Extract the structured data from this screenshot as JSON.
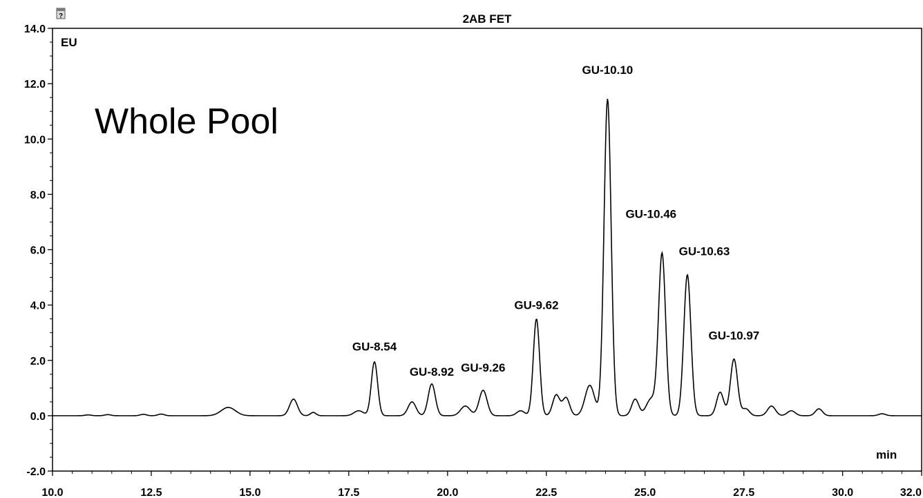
{
  "chart_data": {
    "type": "line",
    "title": "2AB FET",
    "annotation": "Whole Pool",
    "ylabel": "EU",
    "xlabel": "min",
    "xlim": [
      10.0,
      32.0
    ],
    "ylim": [
      -2.0,
      14.0
    ],
    "grid": false,
    "x_ticks": [
      "10.0",
      "12.5",
      "15.0",
      "17.5",
      "20.0",
      "22.5",
      "25.0",
      "27.5",
      "30.0",
      "32.0"
    ],
    "y_ticks": [
      "14.0",
      "12.0",
      "10.0",
      "8.0",
      "6.0",
      "4.0",
      "2.0",
      "0.0",
      "-2.0"
    ],
    "baseline": 0.0,
    "peaks": [
      {
        "x": 10.9,
        "y": 0.03,
        "w": 0.08
      },
      {
        "x": 11.4,
        "y": 0.04,
        "w": 0.08
      },
      {
        "x": 12.3,
        "y": 0.05,
        "w": 0.08
      },
      {
        "x": 12.75,
        "y": 0.06,
        "w": 0.08
      },
      {
        "x": 14.45,
        "y": 0.3,
        "w": 0.18
      },
      {
        "x": 16.1,
        "y": 0.6,
        "w": 0.1
      },
      {
        "x": 16.6,
        "y": 0.12,
        "w": 0.07
      },
      {
        "x": 17.75,
        "y": 0.18,
        "w": 0.12
      },
      {
        "x": 18.15,
        "y": 1.95,
        "w": 0.08
      },
      {
        "x": 19.1,
        "y": 0.5,
        "w": 0.1
      },
      {
        "x": 19.6,
        "y": 1.15,
        "w": 0.09
      },
      {
        "x": 20.45,
        "y": 0.35,
        "w": 0.12
      },
      {
        "x": 20.9,
        "y": 0.92,
        "w": 0.1
      },
      {
        "x": 21.85,
        "y": 0.18,
        "w": 0.1
      },
      {
        "x": 22.25,
        "y": 3.5,
        "w": 0.08
      },
      {
        "x": 22.75,
        "y": 0.75,
        "w": 0.09
      },
      {
        "x": 23.0,
        "y": 0.65,
        "w": 0.09
      },
      {
        "x": 23.6,
        "y": 1.1,
        "w": 0.12
      },
      {
        "x": 24.05,
        "y": 11.45,
        "w": 0.09
      },
      {
        "x": 24.75,
        "y": 0.6,
        "w": 0.09
      },
      {
        "x": 25.15,
        "y": 0.6,
        "w": 0.12
      },
      {
        "x": 25.43,
        "y": 5.85,
        "w": 0.09
      },
      {
        "x": 26.07,
        "y": 5.1,
        "w": 0.09
      },
      {
        "x": 26.9,
        "y": 0.85,
        "w": 0.09
      },
      {
        "x": 27.25,
        "y": 2.05,
        "w": 0.09
      },
      {
        "x": 27.55,
        "y": 0.25,
        "w": 0.09
      },
      {
        "x": 28.2,
        "y": 0.35,
        "w": 0.1
      },
      {
        "x": 28.7,
        "y": 0.18,
        "w": 0.1
      },
      {
        "x": 29.4,
        "y": 0.25,
        "w": 0.09
      },
      {
        "x": 31.0,
        "y": 0.07,
        "w": 0.09
      }
    ],
    "peak_labels": [
      {
        "text": "GU-8.54",
        "x": 18.15,
        "y": 2.35
      },
      {
        "text": "GU-8.92",
        "x": 19.6,
        "y": 1.45
      },
      {
        "text": "GU-9.26",
        "x": 20.9,
        "y": 1.6
      },
      {
        "text": "GU-9.62",
        "x": 22.25,
        "y": 3.85
      },
      {
        "text": "GU-10.10",
        "x": 24.05,
        "y": 12.35
      },
      {
        "text": "GU-10.46",
        "x": 25.15,
        "y": 7.15
      },
      {
        "text": "GU-10.63",
        "x": 26.5,
        "y": 5.8
      },
      {
        "text": "GU-10.97",
        "x": 27.25,
        "y": 2.75
      }
    ]
  }
}
